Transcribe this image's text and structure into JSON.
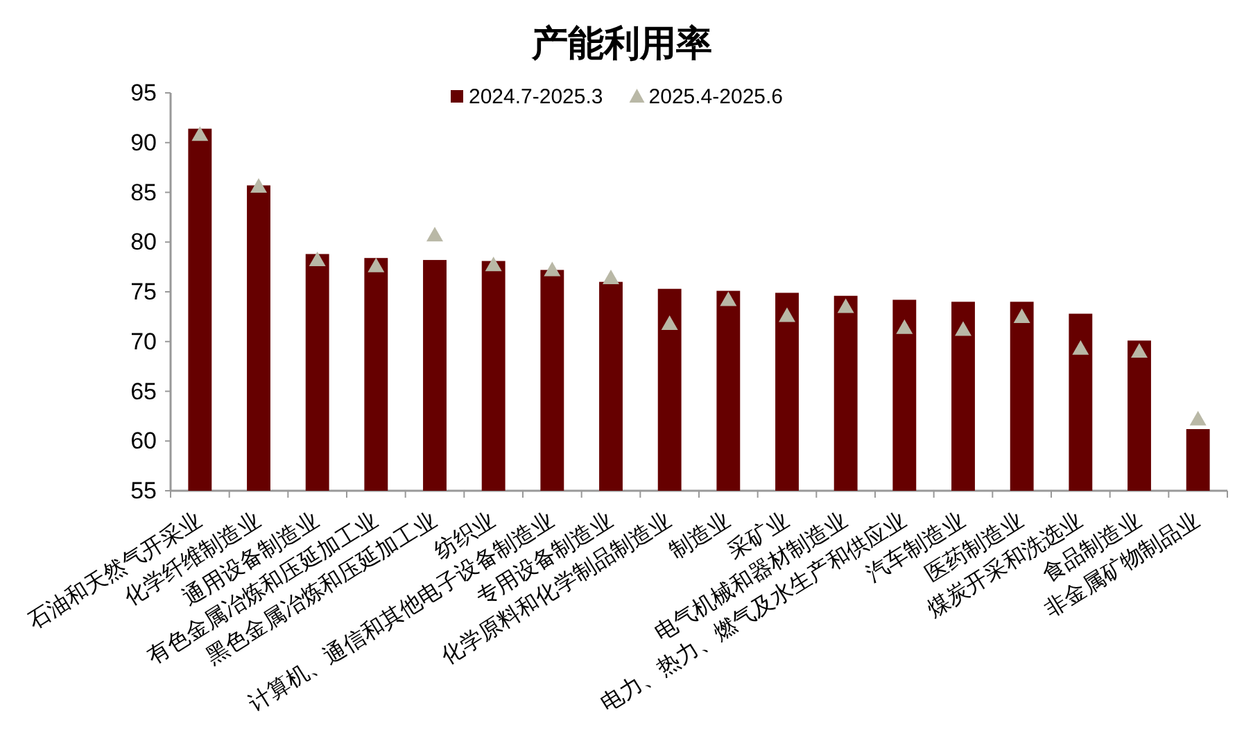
{
  "chart_data": {
    "type": "bar",
    "title": "产能利用率",
    "categories": [
      "石油和天然气开采业",
      "化学纤维制造业",
      "通用设备制造业",
      "有色金属冶炼和压延加工业",
      "黑色金属冶炼和压延加工业",
      "纺织业",
      "计算机、通信和其他电子设备制造业",
      "专用设备制造业",
      "化学原料和化学制品制造业",
      "制造业",
      "采矿业",
      "电气机械和器材制造业",
      "电力、热力、燃气及水生产和供应业",
      "汽车制造业",
      "医药制造业",
      "煤炭开采和洗选业",
      "食品制造业",
      "非金属矿物制品业"
    ],
    "series": [
      {
        "name": "2024.7-2025.3",
        "type": "bar",
        "color": "#660000",
        "values": [
          91.4,
          85.7,
          78.8,
          78.4,
          78.2,
          78.1,
          77.2,
          76.0,
          75.3,
          75.1,
          74.9,
          74.6,
          74.2,
          74.0,
          74.0,
          72.8,
          70.1,
          61.2
        ]
      },
      {
        "name": "2025.4-2025.6",
        "type": "scatter",
        "color": "#b9b8a6",
        "marker": "triangle",
        "values": [
          90.8,
          85.6,
          78.2,
          77.6,
          80.7,
          77.7,
          77.2,
          76.4,
          71.8,
          74.2,
          72.6,
          73.5,
          71.4,
          71.2,
          72.5,
          69.3,
          69.0,
          62.2
        ]
      }
    ],
    "ylim": [
      55,
      95
    ],
    "yticks": [
      55,
      60,
      65,
      70,
      75,
      80,
      85,
      90,
      95
    ],
    "grid": false,
    "legend": "top"
  }
}
